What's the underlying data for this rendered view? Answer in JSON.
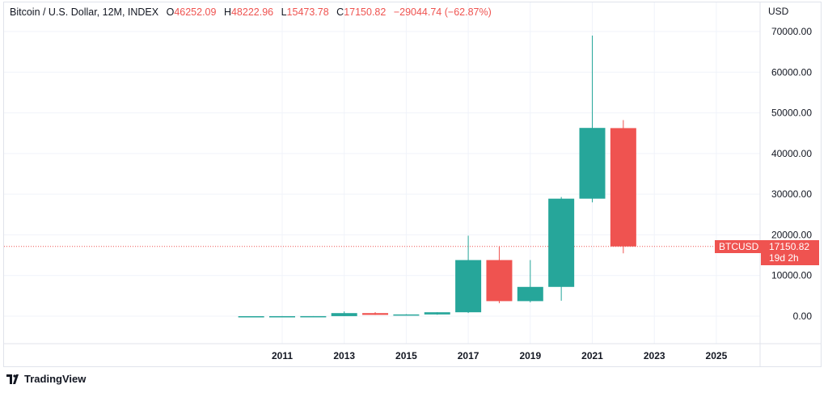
{
  "chart_data": {
    "type": "candlestick",
    "title": "Bitcoin / U.S. Dollar, 12M, INDEX",
    "legend": {
      "O": "46252.09",
      "H": "48222.96",
      "L": "15473.78",
      "C": "17150.82",
      "change": "−29044.74 (−62.87%)"
    },
    "currency": "USD",
    "ylim": [
      -10000,
      76000
    ],
    "yticks": [
      "70000.00",
      "60000.00",
      "50000.00",
      "40000.00",
      "30000.00",
      "20000.00",
      "10000.00",
      "0.00"
    ],
    "xticks": [
      "2011",
      "2013",
      "2015",
      "2017",
      "2019",
      "2021",
      "2023",
      "2025"
    ],
    "grid": true,
    "candles": [
      {
        "year": 2010,
        "o": 0.05,
        "h": 0.5,
        "l": 0.01,
        "c": 0.3
      },
      {
        "year": 2011,
        "o": 0.3,
        "h": 32,
        "l": 0.3,
        "c": 4.7
      },
      {
        "year": 2012,
        "o": 4.7,
        "h": 16,
        "l": 4,
        "c": 13.5
      },
      {
        "year": 2013,
        "o": 13.5,
        "h": 1163,
        "l": 13,
        "c": 757
      },
      {
        "year": 2014,
        "o": 757,
        "h": 1000,
        "l": 300,
        "c": 320
      },
      {
        "year": 2015,
        "o": 320,
        "h": 500,
        "l": 170,
        "c": 430
      },
      {
        "year": 2016,
        "o": 430,
        "h": 980,
        "l": 350,
        "c": 960
      },
      {
        "year": 2017,
        "o": 960,
        "h": 19800,
        "l": 780,
        "c": 13800
      },
      {
        "year": 2018,
        "o": 13800,
        "h": 17200,
        "l": 3200,
        "c": 3700
      },
      {
        "year": 2019,
        "o": 3700,
        "h": 13800,
        "l": 3400,
        "c": 7200
      },
      {
        "year": 2020,
        "o": 7200,
        "h": 29300,
        "l": 3800,
        "c": 28900
      },
      {
        "year": 2021,
        "o": 28900,
        "h": 69000,
        "l": 28000,
        "c": 46300
      },
      {
        "year": 2022,
        "o": 46252.09,
        "h": 48222.96,
        "l": 15473.78,
        "c": 17150.82
      }
    ],
    "last_price": {
      "symbol": "BTCUSD",
      "price": "17150.82",
      "countdown": "19d 2h"
    },
    "colors": {
      "up": "#26a69a",
      "down": "#ef5350",
      "grid": "#f0f3fa"
    }
  },
  "branding": {
    "name": "TradingView"
  }
}
